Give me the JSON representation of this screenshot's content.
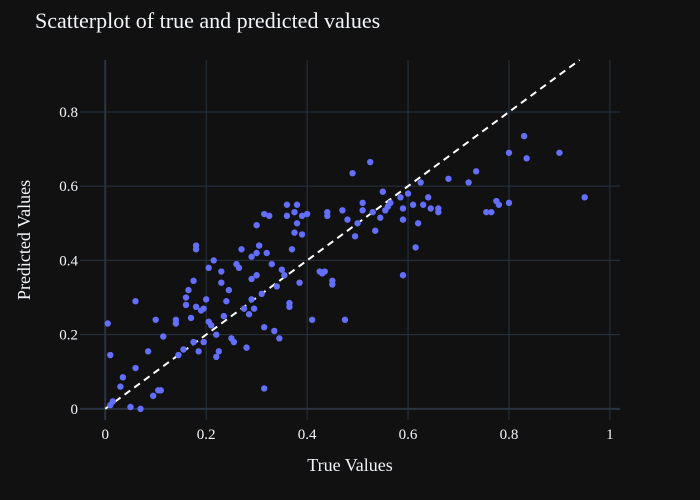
{
  "chart_data": {
    "type": "scatter",
    "title": "Scatterplot of true and predicted values",
    "xlabel": "True Values",
    "ylabel": "Predicted Values",
    "xlim": [
      -0.05,
      1.02
    ],
    "ylim": [
      -0.03,
      0.94
    ],
    "xticks": [
      0,
      0.2,
      0.4,
      0.6,
      0.8,
      1
    ],
    "xtick_labels": [
      "0",
      "0.2",
      "0.4",
      "0.6",
      "0.8",
      "1"
    ],
    "yticks": [
      0,
      0.2,
      0.4,
      0.6,
      0.8
    ],
    "ytick_labels": [
      "0",
      "0.2",
      "0.4",
      "0.6",
      "0.8"
    ],
    "grid": true,
    "colors": {
      "background": "#111111",
      "marker": "#636efa",
      "reference_line": "#ffffff",
      "grid": "#283442",
      "text": "#f2f5fa"
    },
    "reference_line": {
      "style": "dashed",
      "x": [
        0,
        0.94
      ],
      "y": [
        0,
        0.94
      ]
    },
    "series": [
      {
        "points": [
          [
            0.005,
            0.23
          ],
          [
            0.01,
            0.145
          ],
          [
            0.01,
            0.01
          ],
          [
            0.015,
            0.02
          ],
          [
            0.03,
            0.06
          ],
          [
            0.035,
            0.085
          ],
          [
            0.05,
            0.005
          ],
          [
            0.06,
            0.29
          ],
          [
            0.06,
            0.11
          ],
          [
            0.07,
            0.0
          ],
          [
            0.085,
            0.155
          ],
          [
            0.095,
            0.035
          ],
          [
            0.1,
            0.24
          ],
          [
            0.105,
            0.05
          ],
          [
            0.11,
            0.05
          ],
          [
            0.115,
            0.195
          ],
          [
            0.14,
            0.23
          ],
          [
            0.14,
            0.24
          ],
          [
            0.145,
            0.145
          ],
          [
            0.155,
            0.16
          ],
          [
            0.16,
            0.3
          ],
          [
            0.16,
            0.28
          ],
          [
            0.165,
            0.32
          ],
          [
            0.17,
            0.245
          ],
          [
            0.175,
            0.345
          ],
          [
            0.175,
            0.18
          ],
          [
            0.18,
            0.44
          ],
          [
            0.18,
            0.43
          ],
          [
            0.18,
            0.275
          ],
          [
            0.185,
            0.155
          ],
          [
            0.19,
            0.265
          ],
          [
            0.195,
            0.27
          ],
          [
            0.195,
            0.18
          ],
          [
            0.2,
            0.295
          ],
          [
            0.205,
            0.235
          ],
          [
            0.205,
            0.38
          ],
          [
            0.21,
            0.225
          ],
          [
            0.215,
            0.4
          ],
          [
            0.22,
            0.2
          ],
          [
            0.22,
            0.14
          ],
          [
            0.225,
            0.155
          ],
          [
            0.23,
            0.37
          ],
          [
            0.23,
            0.34
          ],
          [
            0.235,
            0.25
          ],
          [
            0.24,
            0.29
          ],
          [
            0.245,
            0.32
          ],
          [
            0.25,
            0.19
          ],
          [
            0.255,
            0.18
          ],
          [
            0.26,
            0.39
          ],
          [
            0.265,
            0.38
          ],
          [
            0.27,
            0.43
          ],
          [
            0.275,
            0.27
          ],
          [
            0.28,
            0.165
          ],
          [
            0.285,
            0.255
          ],
          [
            0.29,
            0.35
          ],
          [
            0.29,
            0.295
          ],
          [
            0.29,
            0.41
          ],
          [
            0.295,
            0.27
          ],
          [
            0.3,
            0.495
          ],
          [
            0.3,
            0.42
          ],
          [
            0.3,
            0.36
          ],
          [
            0.305,
            0.44
          ],
          [
            0.31,
            0.31
          ],
          [
            0.315,
            0.525
          ],
          [
            0.315,
            0.22
          ],
          [
            0.315,
            0.055
          ],
          [
            0.32,
            0.42
          ],
          [
            0.325,
            0.52
          ],
          [
            0.33,
            0.39
          ],
          [
            0.335,
            0.21
          ],
          [
            0.34,
            0.33
          ],
          [
            0.345,
            0.19
          ],
          [
            0.35,
            0.375
          ],
          [
            0.355,
            0.36
          ],
          [
            0.36,
            0.55
          ],
          [
            0.36,
            0.52
          ],
          [
            0.365,
            0.285
          ],
          [
            0.365,
            0.275
          ],
          [
            0.37,
            0.43
          ],
          [
            0.375,
            0.475
          ],
          [
            0.375,
            0.53
          ],
          [
            0.38,
            0.5
          ],
          [
            0.38,
            0.55
          ],
          [
            0.385,
            0.34
          ],
          [
            0.39,
            0.47
          ],
          [
            0.39,
            0.52
          ],
          [
            0.4,
            0.525
          ],
          [
            0.41,
            0.24
          ],
          [
            0.425,
            0.37
          ],
          [
            0.43,
            0.365
          ],
          [
            0.435,
            0.37
          ],
          [
            0.44,
            0.52
          ],
          [
            0.44,
            0.53
          ],
          [
            0.45,
            0.345
          ],
          [
            0.45,
            0.335
          ],
          [
            0.47,
            0.535
          ],
          [
            0.475,
            0.24
          ],
          [
            0.48,
            0.51
          ],
          [
            0.49,
            0.635
          ],
          [
            0.495,
            0.465
          ],
          [
            0.5,
            0.5
          ],
          [
            0.51,
            0.555
          ],
          [
            0.51,
            0.535
          ],
          [
            0.525,
            0.665
          ],
          [
            0.53,
            0.53
          ],
          [
            0.535,
            0.48
          ],
          [
            0.545,
            0.515
          ],
          [
            0.55,
            0.585
          ],
          [
            0.555,
            0.535
          ],
          [
            0.56,
            0.545
          ],
          [
            0.565,
            0.555
          ],
          [
            0.585,
            0.57
          ],
          [
            0.59,
            0.36
          ],
          [
            0.59,
            0.51
          ],
          [
            0.59,
            0.54
          ],
          [
            0.6,
            0.58
          ],
          [
            0.61,
            0.55
          ],
          [
            0.615,
            0.435
          ],
          [
            0.62,
            0.5
          ],
          [
            0.625,
            0.61
          ],
          [
            0.63,
            0.55
          ],
          [
            0.64,
            0.57
          ],
          [
            0.645,
            0.54
          ],
          [
            0.66,
            0.53
          ],
          [
            0.66,
            0.54
          ],
          [
            0.68,
            0.62
          ],
          [
            0.72,
            0.61
          ],
          [
            0.735,
            0.64
          ],
          [
            0.755,
            0.53
          ],
          [
            0.765,
            0.53
          ],
          [
            0.775,
            0.56
          ],
          [
            0.78,
            0.55
          ],
          [
            0.8,
            0.69
          ],
          [
            0.8,
            0.555
          ],
          [
            0.83,
            0.735
          ],
          [
            0.835,
            0.675
          ],
          [
            0.9,
            0.69
          ],
          [
            0.95,
            0.57
          ]
        ]
      }
    ]
  }
}
